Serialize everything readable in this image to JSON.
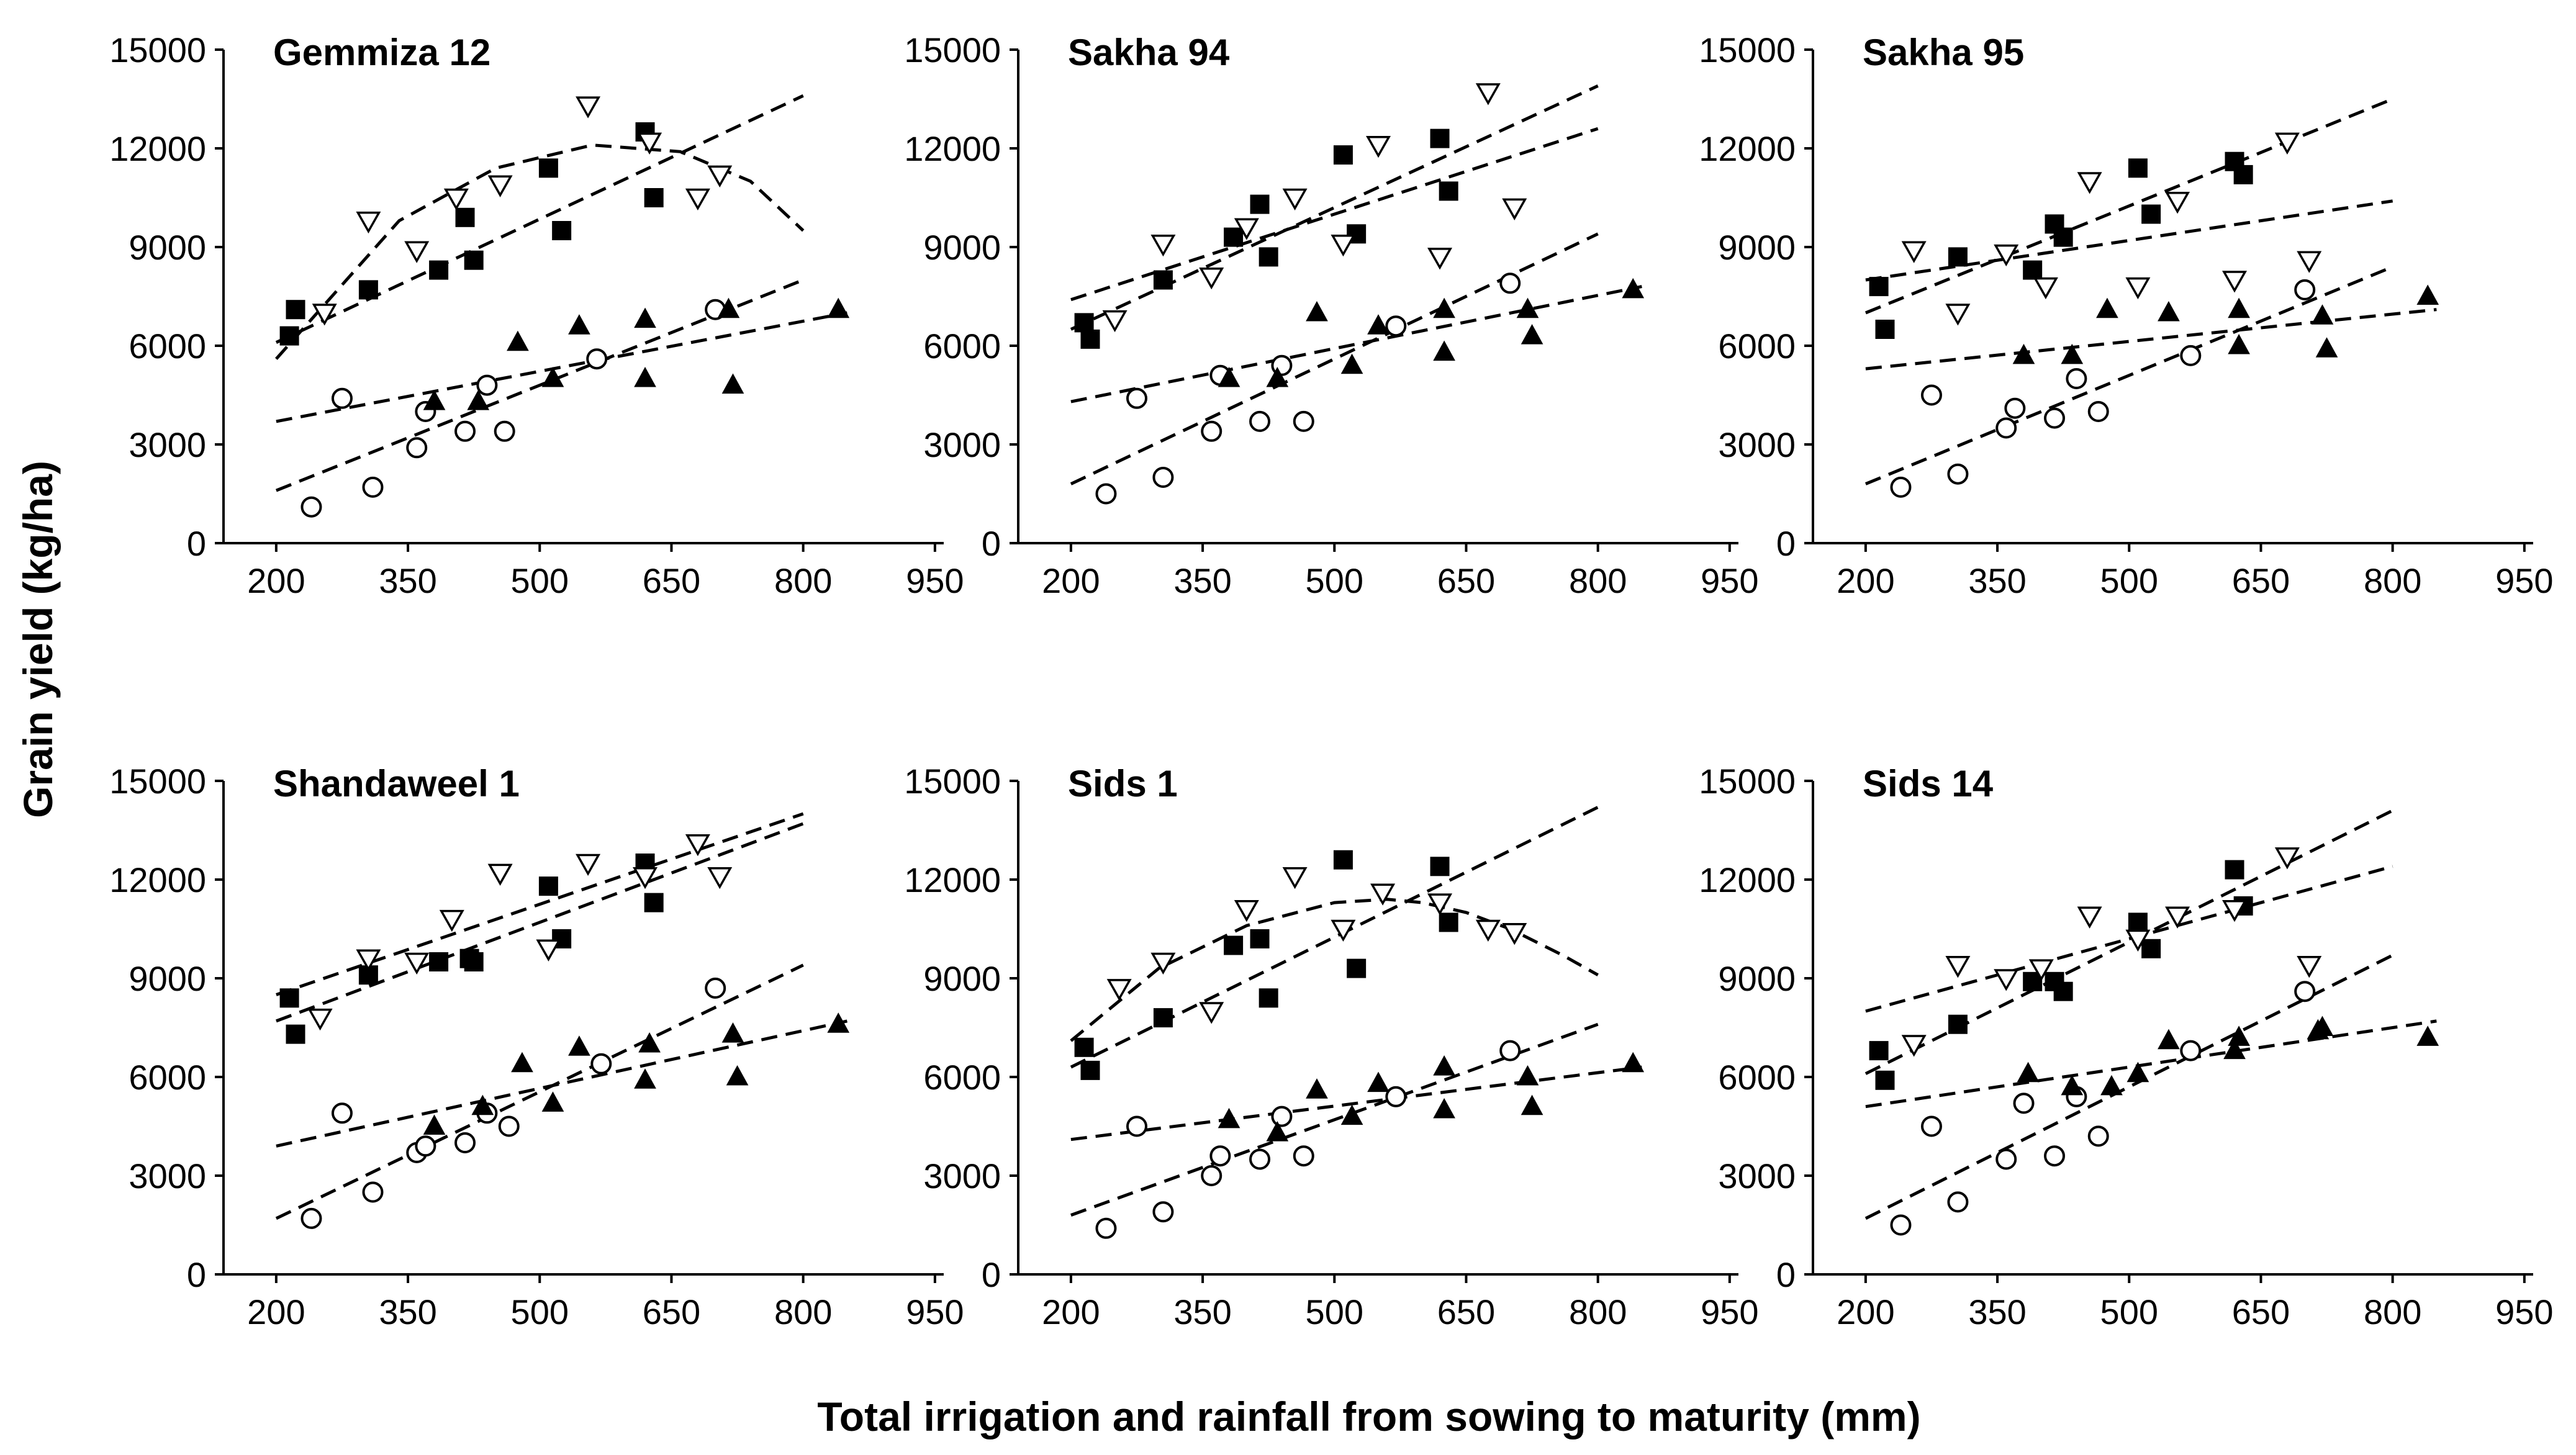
{
  "chart_data": {
    "type": "scatter",
    "ylabel": "Grain yield (kg/ha)",
    "xlabel": "Total irrigation and rainfall from sowing to maturity (mm)",
    "xlim": [
      140,
      960
    ],
    "ylim": [
      0,
      15000
    ],
    "xticks": [
      200,
      350,
      500,
      650,
      800,
      950
    ],
    "yticks": [
      0,
      3000,
      6000,
      9000,
      12000,
      15000
    ],
    "xtick_labels": [
      "200",
      "350",
      "500",
      "650",
      "800",
      "950"
    ],
    "ytick_labels": [
      "0",
      "3000",
      "6000",
      "9000",
      "12000",
      "15000"
    ],
    "panels": [
      {
        "title": "Gemmiza 12",
        "series": [
          {
            "marker": "circle-open",
            "x": [
              240,
              275,
              310,
              360,
              370,
              415,
              440,
              460,
              565,
              700
            ],
            "y": [
              1100,
              4400,
              1700,
              2900,
              4000,
              3400,
              4800,
              3400,
              5600,
              7100
            ]
          },
          {
            "marker": "triangle-filled",
            "x": [
              380,
              430,
              475,
              515,
              545,
              620,
              620,
              715,
              720,
              840
            ],
            "y": [
              4300,
              4300,
              6100,
              5000,
              6600,
              6800,
              5000,
              7100,
              4800,
              7100
            ]
          },
          {
            "marker": "square-filled",
            "x": [
              215,
              222,
              305,
              385,
              415,
              425,
              510,
              525,
              620,
              630
            ],
            "y": [
              6300,
              7100,
              7700,
              8300,
              9900,
              8600,
              11400,
              9500,
              12500,
              10500
            ]
          },
          {
            "marker": "triangle-open",
            "x": [
              255,
              305,
              360,
              405,
              455,
              555,
              625,
              680,
              705
            ],
            "y": [
              7000,
              9800,
              8900,
              10500,
              10900,
              13300,
              12200,
              10500,
              11200
            ]
          }
        ],
        "fits": [
          {
            "kind": "linear",
            "x": [
              200,
              800
            ],
            "y": [
              1600,
              8000
            ]
          },
          {
            "kind": "linear",
            "x": [
              200,
              850
            ],
            "y": [
              3700,
              7000
            ]
          },
          {
            "kind": "linear",
            "x": [
              200,
              800
            ],
            "y": [
              6100,
              13600
            ]
          },
          {
            "kind": "quadratic",
            "x": [
              200,
              340,
              450,
              560,
              660,
              740,
              800
            ],
            "y": [
              5600,
              9800,
              11400,
              12100,
              11900,
              11000,
              9500
            ]
          }
        ]
      },
      {
        "title": "Sakha 94",
        "series": [
          {
            "marker": "circle-open",
            "x": [
              240,
              275,
              305,
              360,
              370,
              415,
              440,
              465,
              570,
              700
            ],
            "y": [
              1500,
              4400,
              2000,
              3400,
              5100,
              3700,
              5400,
              3700,
              6600,
              7900
            ]
          },
          {
            "marker": "triangle-filled",
            "x": [
              380,
              435,
              480,
              520,
              550,
              625,
              625,
              720,
              725,
              840
            ],
            "y": [
              5000,
              5000,
              7000,
              5400,
              6600,
              7100,
              5800,
              7100,
              6300,
              7700
            ]
          },
          {
            "marker": "square-filled",
            "x": [
              215,
              222,
              305,
              385,
              415,
              425,
              510,
              525,
              620,
              630
            ],
            "y": [
              6700,
              6200,
              8000,
              9300,
              10300,
              8700,
              11800,
              9400,
              12300,
              10700
            ]
          },
          {
            "marker": "triangle-open",
            "x": [
              250,
              305,
              360,
              400,
              455,
              510,
              550,
              620,
              675,
              705
            ],
            "y": [
              6800,
              9100,
              8100,
              9600,
              10500,
              9100,
              12100,
              8700,
              13700,
              10200
            ]
          }
        ],
        "fits": [
          {
            "kind": "linear",
            "x": [
              200,
              800
            ],
            "y": [
              1800,
              9400
            ]
          },
          {
            "kind": "linear",
            "x": [
              200,
              850
            ],
            "y": [
              4300,
              7800
            ]
          },
          {
            "kind": "linear",
            "x": [
              200,
              800
            ],
            "y": [
              6500,
              13900
            ]
          },
          {
            "kind": "linear",
            "x": [
              200,
              800
            ],
            "y": [
              7400,
              12600
            ]
          }
        ]
      },
      {
        "title": "Sakha 95",
        "series": [
          {
            "marker": "circle-open",
            "x": [
              240,
              275,
              305,
              360,
              370,
              415,
              440,
              465,
              570,
              700
            ],
            "y": [
              1700,
              4500,
              2100,
              3500,
              4100,
              3800,
              5000,
              4000,
              5700,
              7700
            ]
          },
          {
            "marker": "triangle-filled",
            "x": [
              380,
              435,
              475,
              545,
              625,
              625,
              720,
              725,
              840
            ],
            "y": [
              5700,
              5700,
              7100,
              7000,
              7100,
              6000,
              6900,
              5900,
              7500
            ]
          },
          {
            "marker": "square-filled",
            "x": [
              215,
              222,
              305,
              390,
              415,
              425,
              510,
              525,
              620,
              630
            ],
            "y": [
              7800,
              6500,
              8700,
              8300,
              9700,
              9300,
              11400,
              10000,
              11600,
              11200
            ]
          },
          {
            "marker": "triangle-open",
            "x": [
              255,
              305,
              360,
              405,
              455,
              510,
              555,
              620,
              680,
              705
            ],
            "y": [
              8900,
              7000,
              8800,
              7800,
              11000,
              7800,
              10400,
              8000,
              12200,
              8600
            ]
          }
        ],
        "fits": [
          {
            "kind": "linear",
            "x": [
              200,
              800
            ],
            "y": [
              1800,
              8400
            ]
          },
          {
            "kind": "linear",
            "x": [
              200,
              850
            ],
            "y": [
              5300,
              7100
            ]
          },
          {
            "kind": "linear",
            "x": [
              200,
              800
            ],
            "y": [
              7000,
              13500
            ]
          },
          {
            "kind": "linear",
            "x": [
              200,
              800
            ],
            "y": [
              8000,
              10400
            ]
          }
        ]
      },
      {
        "title": "Shandaweel 1",
        "series": [
          {
            "marker": "circle-open",
            "x": [
              240,
              275,
              310,
              360,
              370,
              415,
              440,
              465,
              570,
              700
            ],
            "y": [
              1700,
              4900,
              2500,
              3700,
              3900,
              4000,
              4900,
              4500,
              6400,
              8700
            ]
          },
          {
            "marker": "triangle-filled",
            "x": [
              380,
              435,
              480,
              515,
              545,
              620,
              625,
              720,
              725,
              840
            ],
            "y": [
              4500,
              5100,
              6400,
              5200,
              6900,
              5900,
              7000,
              7300,
              6000,
              7600
            ]
          },
          {
            "marker": "square-filled",
            "x": [
              215,
              222,
              305,
              385,
              420,
              425,
              510,
              525,
              620,
              630
            ],
            "y": [
              8400,
              7300,
              9100,
              9500,
              9600,
              9500,
              11800,
              10200,
              12500,
              11300
            ]
          },
          {
            "marker": "triangle-open",
            "x": [
              250,
              305,
              360,
              400,
              455,
              510,
              555,
              620,
              680,
              705
            ],
            "y": [
              7800,
              9600,
              9500,
              10800,
              12200,
              9900,
              12500,
              12100,
              13100,
              12100
            ]
          }
        ],
        "fits": [
          {
            "kind": "linear",
            "x": [
              200,
              800
            ],
            "y": [
              1700,
              9400
            ]
          },
          {
            "kind": "linear",
            "x": [
              200,
              850
            ],
            "y": [
              3900,
              7700
            ]
          },
          {
            "kind": "linear",
            "x": [
              200,
              800
            ],
            "y": [
              7700,
              13700
            ]
          },
          {
            "kind": "linear",
            "x": [
              200,
              800
            ],
            "y": [
              8500,
              14000
            ]
          }
        ]
      },
      {
        "title": "Sids 1",
        "series": [
          {
            "marker": "circle-open",
            "x": [
              240,
              275,
              305,
              360,
              370,
              415,
              440,
              465,
              570,
              700
            ],
            "y": [
              1400,
              4500,
              1900,
              3000,
              3600,
              3500,
              4800,
              3600,
              5400,
              6800
            ]
          },
          {
            "marker": "triangle-filled",
            "x": [
              380,
              435,
              480,
              520,
              550,
              625,
              625,
              720,
              725,
              840
            ],
            "y": [
              4700,
              4300,
              5600,
              4800,
              5800,
              6300,
              5000,
              6000,
              5100,
              6400
            ]
          },
          {
            "marker": "square-filled",
            "x": [
              215,
              222,
              305,
              385,
              415,
              425,
              510,
              525,
              620,
              630
            ],
            "y": [
              6900,
              6200,
              7800,
              10000,
              10200,
              8400,
              12600,
              9300,
              12400,
              10700
            ]
          },
          {
            "marker": "triangle-open",
            "x": [
              255,
              305,
              360,
              400,
              455,
              510,
              555,
              620,
              675,
              705
            ],
            "y": [
              8700,
              9500,
              8000,
              11100,
              12100,
              10500,
              11600,
              11300,
              10500,
              10400
            ]
          }
        ],
        "fits": [
          {
            "kind": "linear",
            "x": [
              200,
              800
            ],
            "y": [
              1800,
              7600
            ]
          },
          {
            "kind": "linear",
            "x": [
              200,
              850
            ],
            "y": [
              4100,
              6300
            ]
          },
          {
            "kind": "linear",
            "x": [
              200,
              800
            ],
            "y": [
              6300,
              14200
            ]
          },
          {
            "kind": "quadratic",
            "x": [
              200,
              300,
              400,
              500,
              560,
              600,
              650,
              700,
              760,
              800
            ],
            "y": [
              7100,
              9300,
              10600,
              11300,
              11400,
              11300,
              11000,
              10500,
              9700,
              9100
            ]
          }
        ]
      },
      {
        "title": "Sids 14",
        "series": [
          {
            "marker": "circle-open",
            "x": [
              240,
              275,
              305,
              360,
              380,
              415,
              440,
              465,
              570,
              700
            ],
            "y": [
              1500,
              4500,
              2200,
              3500,
              5200,
              3600,
              5400,
              4200,
              6800,
              8600
            ]
          },
          {
            "marker": "triangle-filled",
            "x": [
              385,
              435,
              480,
              510,
              545,
              620,
              625,
              715,
              720,
              840
            ],
            "y": [
              6100,
              5700,
              5700,
              6100,
              7100,
              6800,
              7200,
              7400,
              7500,
              7200
            ]
          },
          {
            "marker": "square-filled",
            "x": [
              215,
              222,
              305,
              390,
              415,
              425,
              510,
              525,
              620,
              630
            ],
            "y": [
              6800,
              5900,
              7600,
              8900,
              8900,
              8600,
              10700,
              9900,
              12300,
              11200
            ]
          },
          {
            "marker": "triangle-open",
            "x": [
              255,
              305,
              360,
              400,
              455,
              510,
              555,
              620,
              680,
              705
            ],
            "y": [
              7000,
              9400,
              9000,
              9300,
              10900,
              10200,
              10900,
              11100,
              12700,
              9400
            ]
          }
        ],
        "fits": [
          {
            "kind": "linear",
            "x": [
              200,
              800
            ],
            "y": [
              1700,
              9700
            ]
          },
          {
            "kind": "linear",
            "x": [
              200,
              850
            ],
            "y": [
              5100,
              7700
            ]
          },
          {
            "kind": "linear",
            "x": [
              200,
              800
            ],
            "y": [
              6100,
              14100
            ]
          },
          {
            "kind": "linear",
            "x": [
              200,
              800
            ],
            "y": [
              8000,
              12400
            ]
          }
        ]
      }
    ]
  }
}
